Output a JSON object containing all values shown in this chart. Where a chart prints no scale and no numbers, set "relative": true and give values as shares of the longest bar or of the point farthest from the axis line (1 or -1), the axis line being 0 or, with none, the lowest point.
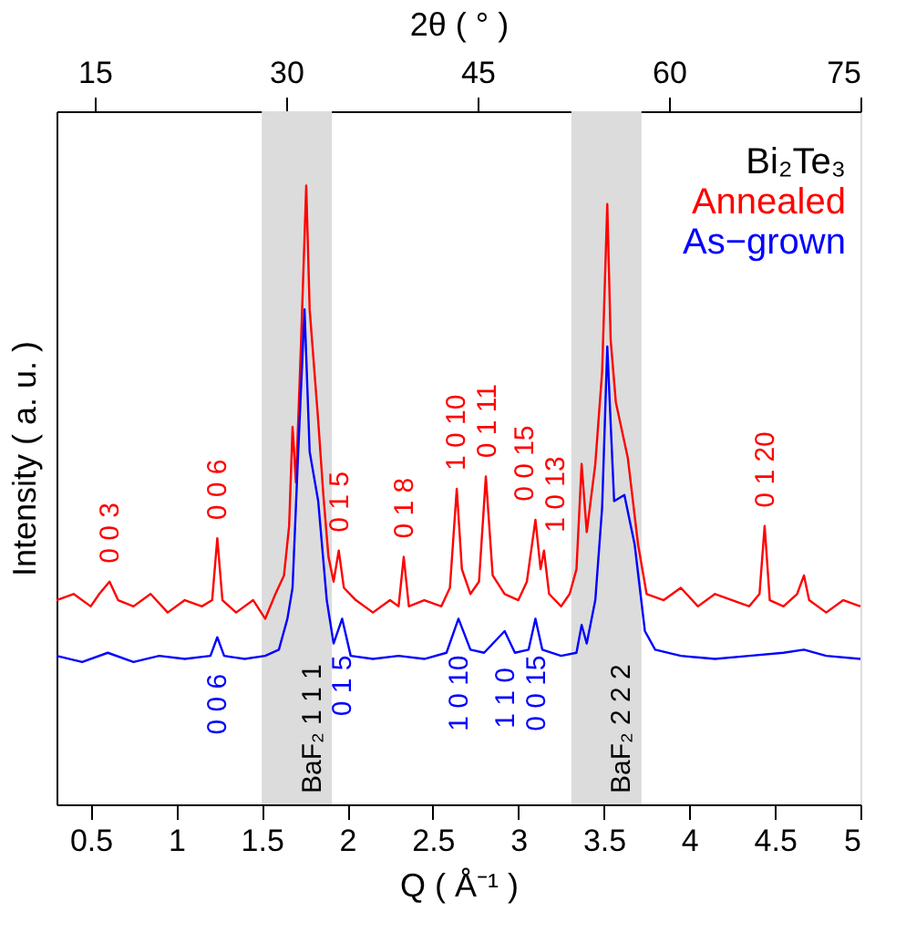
{
  "chart_data": {
    "type": "line",
    "xlabel": "Q ( Å⁻¹ )",
    "ylabel": "Intensity ( a. u. )",
    "x2label": "2θ ( ° )",
    "relative": true,
    "xlim": [
      0.3,
      5
    ],
    "xticks": [
      0.5,
      1,
      1.5,
      2,
      2.5,
      3,
      3.5,
      4,
      4.5,
      5
    ],
    "x2lim": [
      12,
      75
    ],
    "x2ticks": [
      15,
      30,
      45,
      60,
      75
    ],
    "grid": false,
    "legend": "top right",
    "legend_title": "Bi₂Te₃",
    "marker": "none",
    "line_style": "solid",
    "bands": [
      {
        "axis": "x",
        "from": 1.5,
        "to": 1.91,
        "color": "#dcdcdc",
        "label": "BaF₂ 1 1 1"
      },
      {
        "axis": "x",
        "from": 3.31,
        "to": 3.72,
        "color": "#dcdcdc",
        "label": "BaF₂ 2 2 2"
      }
    ],
    "series": [
      {
        "name": "Annealed",
        "color": "#ff0000",
        "x": [
          0.3,
          0.4,
          0.5,
          0.55,
          0.61,
          0.66,
          0.75,
          0.85,
          0.95,
          1.05,
          1.15,
          1.21,
          1.24,
          1.27,
          1.35,
          1.45,
          1.52,
          1.58,
          1.63,
          1.66,
          1.68,
          1.7,
          1.73,
          1.76,
          1.78,
          1.83,
          1.86,
          1.89,
          1.92,
          1.95,
          1.98,
          2.05,
          2.15,
          2.25,
          2.3,
          2.33,
          2.36,
          2.45,
          2.55,
          2.6,
          2.64,
          2.67,
          2.72,
          2.77,
          2.81,
          2.85,
          2.92,
          3.0,
          3.05,
          3.1,
          3.13,
          3.15,
          3.18,
          3.25,
          3.3,
          3.34,
          3.37,
          3.4,
          3.45,
          3.49,
          3.52,
          3.54,
          3.57,
          3.64,
          3.7,
          3.75,
          3.85,
          3.95,
          4.05,
          4.15,
          4.25,
          4.35,
          4.41,
          4.44,
          4.47,
          4.55,
          4.63,
          4.67,
          4.7,
          4.8,
          4.9,
          5.0
        ],
        "values": [
          0.33,
          0.34,
          0.32,
          0.34,
          0.36,
          0.33,
          0.32,
          0.34,
          0.31,
          0.33,
          0.32,
          0.33,
          0.43,
          0.33,
          0.31,
          0.33,
          0.3,
          0.34,
          0.37,
          0.45,
          0.61,
          0.52,
          0.75,
          1.0,
          0.8,
          0.62,
          0.5,
          0.4,
          0.36,
          0.41,
          0.35,
          0.33,
          0.31,
          0.33,
          0.32,
          0.4,
          0.32,
          0.33,
          0.32,
          0.35,
          0.51,
          0.38,
          0.34,
          0.36,
          0.53,
          0.37,
          0.34,
          0.33,
          0.36,
          0.46,
          0.38,
          0.41,
          0.34,
          0.32,
          0.34,
          0.38,
          0.55,
          0.44,
          0.55,
          0.7,
          0.97,
          0.75,
          0.65,
          0.56,
          0.42,
          0.34,
          0.33,
          0.35,
          0.32,
          0.34,
          0.33,
          0.32,
          0.34,
          0.45,
          0.33,
          0.32,
          0.34,
          0.37,
          0.33,
          0.31,
          0.33,
          0.32
        ]
      },
      {
        "name": "As−grown",
        "color": "#0000ff",
        "x": [
          0.3,
          0.45,
          0.6,
          0.75,
          0.9,
          1.05,
          1.2,
          1.24,
          1.28,
          1.4,
          1.52,
          1.6,
          1.65,
          1.68,
          1.71,
          1.75,
          1.78,
          1.83,
          1.88,
          1.92,
          1.97,
          2.02,
          2.15,
          2.3,
          2.45,
          2.58,
          2.65,
          2.72,
          2.8,
          2.92,
          2.98,
          3.06,
          3.1,
          3.14,
          3.25,
          3.34,
          3.37,
          3.4,
          3.45,
          3.49,
          3.52,
          3.56,
          3.62,
          3.68,
          3.74,
          3.8,
          3.95,
          4.15,
          4.35,
          4.55,
          4.67,
          4.8,
          5.0
        ],
        "values": [
          0.24,
          0.23,
          0.245,
          0.23,
          0.24,
          0.235,
          0.24,
          0.27,
          0.24,
          0.235,
          0.24,
          0.25,
          0.3,
          0.35,
          0.55,
          0.8,
          0.57,
          0.49,
          0.33,
          0.26,
          0.3,
          0.24,
          0.235,
          0.24,
          0.235,
          0.245,
          0.3,
          0.25,
          0.245,
          0.28,
          0.245,
          0.25,
          0.3,
          0.25,
          0.24,
          0.245,
          0.29,
          0.26,
          0.33,
          0.48,
          0.74,
          0.49,
          0.5,
          0.42,
          0.28,
          0.25,
          0.24,
          0.235,
          0.24,
          0.245,
          0.25,
          0.24,
          0.235
        ]
      }
    ],
    "annotations": [
      {
        "text": "0 0 3",
        "x": 0.61,
        "y": 0.36
      },
      {
        "text": "0 0 6",
        "x": 1.24,
        "y": 0.43
      },
      {
        "text": "0 1 5",
        "x": 1.95,
        "y": 0.41
      },
      {
        "text": "0 1 8",
        "x": 2.33,
        "y": 0.4
      },
      {
        "text": "1 0 10",
        "x": 2.64,
        "y": 0.51
      },
      {
        "text": "0 1 11",
        "x": 2.81,
        "y": 0.53
      },
      {
        "text": "0 0 15",
        "x": 3.1,
        "y": 0.46
      },
      {
        "text": "1 0 13",
        "x": 3.15,
        "y": 0.41
      },
      {
        "text": "0 1 20",
        "x": 4.44,
        "y": 0.45
      },
      {
        "text": "0 0 6",
        "x": 1.24,
        "y": 0.27
      },
      {
        "text": "0 1 5",
        "x": 1.97,
        "y": 0.3
      },
      {
        "text": "1 0 10",
        "x": 2.65,
        "y": 0.3
      },
      {
        "text": "1 1 0",
        "x": 2.92,
        "y": 0.28
      },
      {
        "text": "0 0 15",
        "x": 3.1,
        "y": 0.3
      }
    ]
  }
}
